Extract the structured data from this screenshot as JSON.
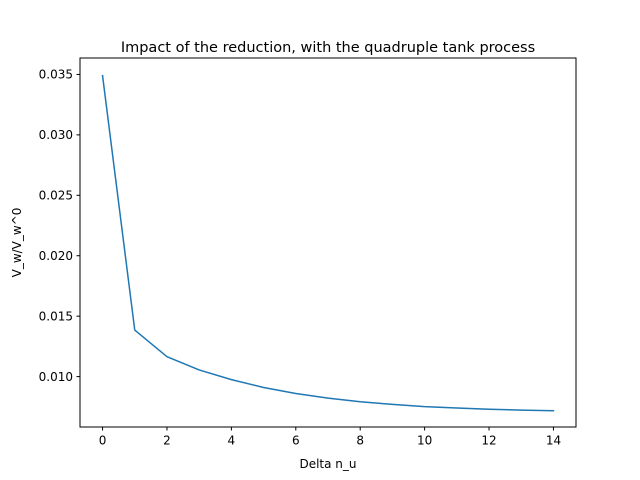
{
  "chart_data": {
    "type": "line",
    "title": "Impact of the reduction, with the quadruple tank process",
    "xlabel": "Delta n_u",
    "ylabel": "V_w/V_w^0",
    "xlim": [
      -0.7,
      14.7
    ],
    "ylim": [
      0.00583,
      0.03636
    ],
    "xticks": [
      0,
      2,
      4,
      6,
      8,
      10,
      12,
      14
    ],
    "xtick_labels": [
      "0",
      "2",
      "4",
      "6",
      "8",
      "10",
      "12",
      "14"
    ],
    "yticks": [
      0.01,
      0.015,
      0.02,
      0.025,
      0.03,
      0.035
    ],
    "ytick_labels": [
      "0.010",
      "0.015",
      "0.020",
      "0.025",
      "0.030",
      "0.035"
    ],
    "grid": false,
    "legend": "none",
    "line_color": "#1f77b4",
    "series": [
      {
        "x": [
          0,
          1,
          2,
          3,
          4,
          5,
          6,
          7,
          8,
          9,
          10,
          11,
          12,
          13,
          14
        ],
        "values": [
          0.0349,
          0.01385,
          0.01165,
          0.01055,
          0.00975,
          0.0091,
          0.0086,
          0.00822,
          0.00792,
          0.0077,
          0.00752,
          0.0074,
          0.0073,
          0.00723,
          0.00718
        ]
      }
    ]
  }
}
